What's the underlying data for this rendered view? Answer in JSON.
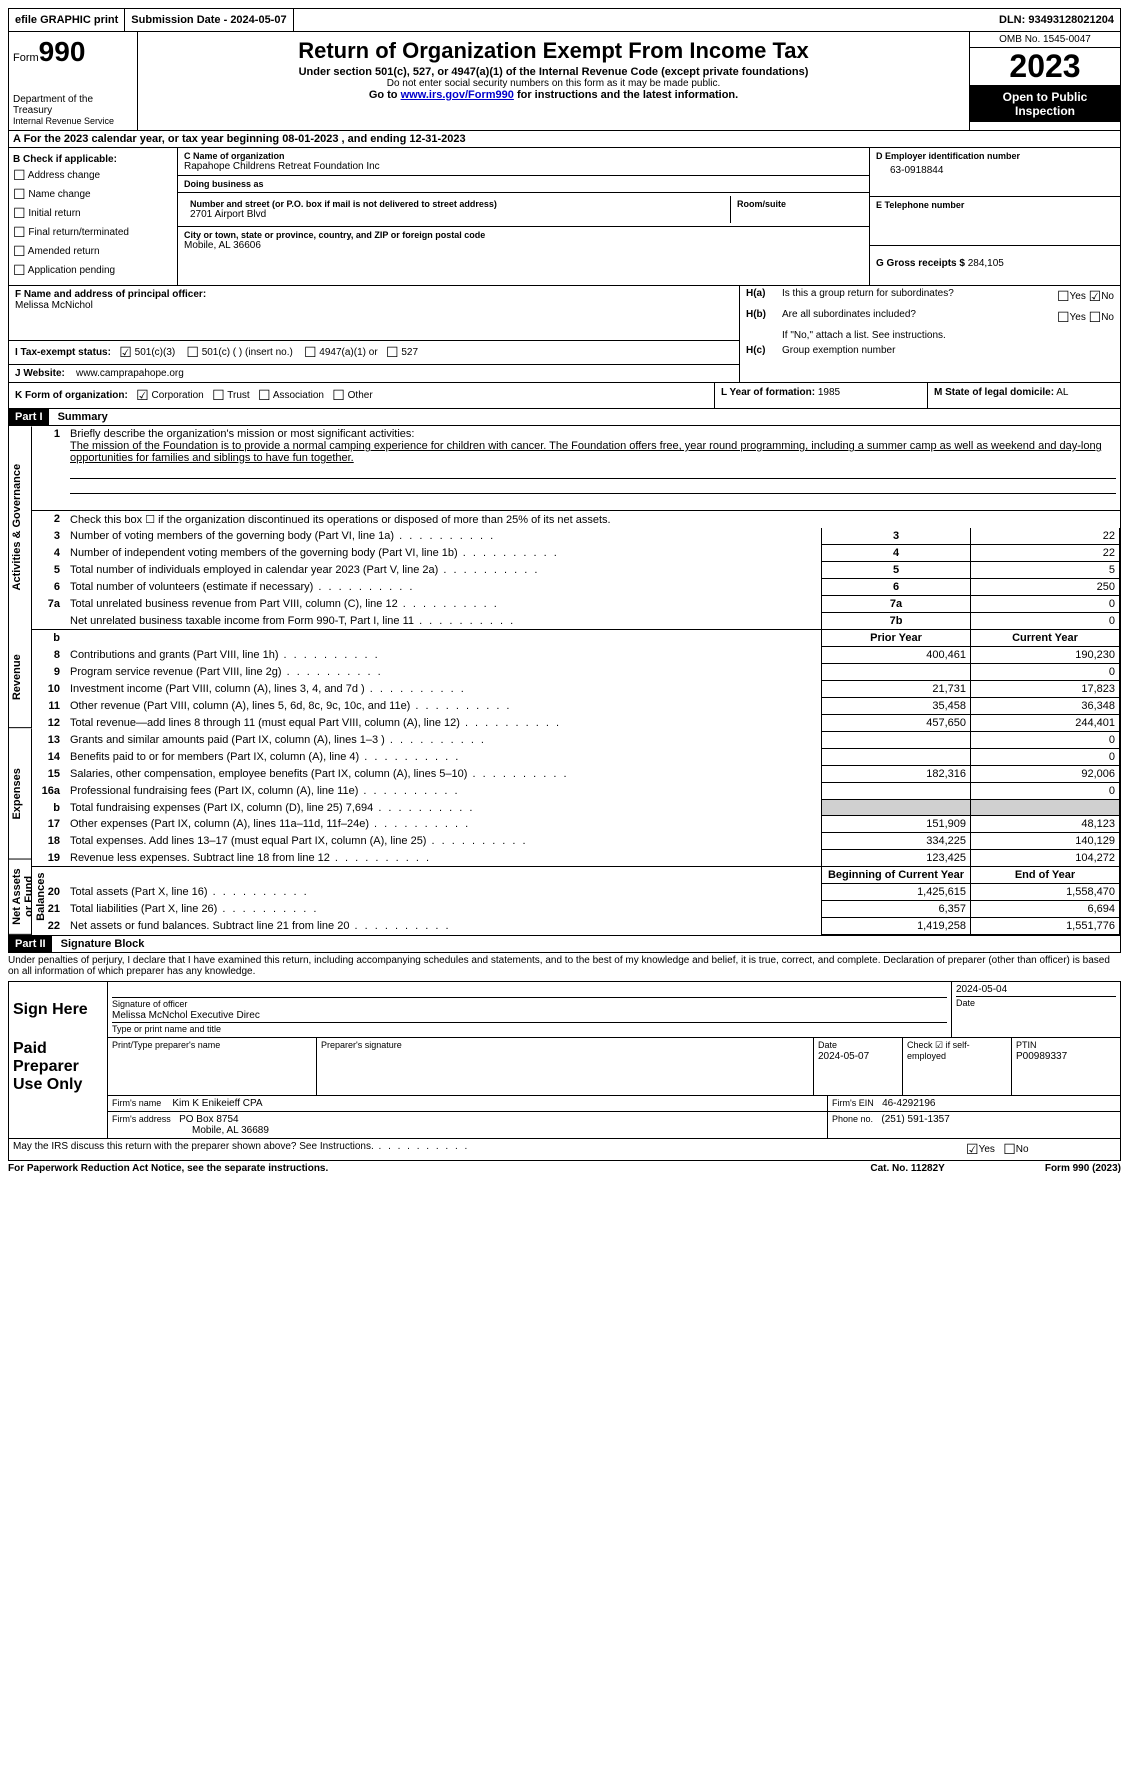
{
  "topbar": {
    "efile": "efile GRAPHIC print",
    "submission": "Submission Date - 2024-05-07",
    "dln": "DLN: 93493128021204"
  },
  "header": {
    "form_label": "Form",
    "form_number": "990",
    "dept": "Department of the Treasury",
    "irs": "Internal Revenue Service",
    "title": "Return of Organization Exempt From Income Tax",
    "subtitle": "Under section 501(c), 527, or 4947(a)(1) of the Internal Revenue Code (except private foundations)",
    "ssn_note": "Do not enter social security numbers on this form as it may be made public.",
    "goto_prefix": "Go to ",
    "goto_link": "www.irs.gov/Form990",
    "goto_suffix": " for instructions and the latest information.",
    "omb": "OMB No. 1545-0047",
    "year": "2023",
    "open": "Open to Public Inspection"
  },
  "row_a": "A For the 2023 calendar year, or tax year beginning 08-01-2023   , and ending 12-31-2023",
  "box_b": {
    "title": "B Check if applicable:",
    "items": [
      "Address change",
      "Name change",
      "Initial return",
      "Final return/terminated",
      "Amended return",
      "Application pending"
    ]
  },
  "box_c": {
    "name_label": "C Name of organization",
    "name": "Rapahope Childrens Retreat Foundation Inc",
    "dba_label": "Doing business as",
    "dba": "",
    "street_label": "Number and street (or P.O. box if mail is not delivered to street address)",
    "room_label": "Room/suite",
    "street": "2701 Airport Blvd",
    "city_label": "City or town, state or province, country, and ZIP or foreign postal code",
    "city": "Mobile, AL  36606"
  },
  "box_d": {
    "label": "D Employer identification number",
    "val": "63-0918844"
  },
  "box_e": {
    "label": "E Telephone number",
    "val": ""
  },
  "box_g": {
    "label": "G Gross receipts $",
    "val": "284,105"
  },
  "box_f": {
    "label": "F  Name and address of principal officer:",
    "name": "Melissa McNichol"
  },
  "box_h": {
    "a_label": "H(a)",
    "a_text": "Is this a group return for subordinates?",
    "b_label": "H(b)",
    "b_text": "Are all subordinates included?",
    "b_note": "If \"No,\" attach a list. See instructions.",
    "c_label": "H(c)",
    "c_text": "Group exemption number",
    "yes": "Yes",
    "no": "No"
  },
  "box_i": {
    "label": "I     Tax-exempt status:",
    "opt1": "501(c)(3)",
    "opt2": "501(c) (  ) (insert no.)",
    "opt3": "4947(a)(1) or",
    "opt4": "527"
  },
  "box_j": {
    "label": "J     Website:",
    "val": "www.camprapahope.org"
  },
  "box_k": {
    "label": "K Form of organization:",
    "opts": [
      "Corporation",
      "Trust",
      "Association",
      "Other"
    ]
  },
  "box_l": {
    "label": "L Year of formation:",
    "val": "1985"
  },
  "box_m": {
    "label": "M State of legal domicile:",
    "val": "AL"
  },
  "part1": {
    "header": "Part I",
    "title": "Summary",
    "tabs": {
      "gov": "Activities & Governance",
      "rev": "Revenue",
      "exp": "Expenses",
      "net": "Net Assets or Fund Balances"
    },
    "line1_label": "Briefly describe the organization's mission or most significant activities:",
    "mission": "The mission of the Foundation is to provide a normal camping experience for children with cancer. The Foundation offers free, year round programming, including a summer camp as well as weekend and day-long opportunities for families and siblings to have fun together.",
    "line2": "Check this box ☐ if the organization discontinued its operations or disposed of more than 25% of its net assets.",
    "lines_gov": [
      {
        "n": "3",
        "text": "Number of voting members of the governing body (Part VI, line 1a)",
        "box": "3",
        "val": "22"
      },
      {
        "n": "4",
        "text": "Number of independent voting members of the governing body (Part VI, line 1b)",
        "box": "4",
        "val": "22"
      },
      {
        "n": "5",
        "text": "Total number of individuals employed in calendar year 2023 (Part V, line 2a)",
        "box": "5",
        "val": "5"
      },
      {
        "n": "6",
        "text": "Total number of volunteers (estimate if necessary)",
        "box": "6",
        "val": "250"
      },
      {
        "n": "7a",
        "text": "Total unrelated business revenue from Part VIII, column (C), line 12",
        "box": "7a",
        "val": "0"
      },
      {
        "n": "",
        "text": "Net unrelated business taxable income from Form 990-T, Part I, line 11",
        "box": "7b",
        "val": "0"
      }
    ],
    "col_headers": {
      "prior": "Prior Year",
      "current": "Current Year",
      "begin": "Beginning of Current Year",
      "end": "End of Year"
    },
    "lines_rev": [
      {
        "n": "8",
        "text": "Contributions and grants (Part VIII, line 1h)",
        "prior": "400,461",
        "curr": "190,230"
      },
      {
        "n": "9",
        "text": "Program service revenue (Part VIII, line 2g)",
        "prior": "",
        "curr": "0"
      },
      {
        "n": "10",
        "text": "Investment income (Part VIII, column (A), lines 3, 4, and 7d )",
        "prior": "21,731",
        "curr": "17,823"
      },
      {
        "n": "11",
        "text": "Other revenue (Part VIII, column (A), lines 5, 6d, 8c, 9c, 10c, and 11e)",
        "prior": "35,458",
        "curr": "36,348"
      },
      {
        "n": "12",
        "text": "Total revenue—add lines 8 through 11 (must equal Part VIII, column (A), line 12)",
        "prior": "457,650",
        "curr": "244,401"
      }
    ],
    "lines_exp": [
      {
        "n": "13",
        "text": "Grants and similar amounts paid (Part IX, column (A), lines 1–3 )",
        "prior": "",
        "curr": "0"
      },
      {
        "n": "14",
        "text": "Benefits paid to or for members (Part IX, column (A), line 4)",
        "prior": "",
        "curr": "0"
      },
      {
        "n": "15",
        "text": "Salaries, other compensation, employee benefits (Part IX, column (A), lines 5–10)",
        "prior": "182,316",
        "curr": "92,006"
      },
      {
        "n": "16a",
        "text": "Professional fundraising fees (Part IX, column (A), line 11e)",
        "prior": "",
        "curr": "0"
      },
      {
        "n": "b",
        "text": "Total fundraising expenses (Part IX, column (D), line 25) 7,694",
        "prior": "gray",
        "curr": "gray"
      },
      {
        "n": "17",
        "text": "Other expenses (Part IX, column (A), lines 11a–11d, 11f–24e)",
        "prior": "151,909",
        "curr": "48,123"
      },
      {
        "n": "18",
        "text": "Total expenses. Add lines 13–17 (must equal Part IX, column (A), line 25)",
        "prior": "334,225",
        "curr": "140,129"
      },
      {
        "n": "19",
        "text": "Revenue less expenses. Subtract line 18 from line 12",
        "prior": "123,425",
        "curr": "104,272"
      }
    ],
    "lines_net": [
      {
        "n": "20",
        "text": "Total assets (Part X, line 16)",
        "prior": "1,425,615",
        "curr": "1,558,470"
      },
      {
        "n": "21",
        "text": "Total liabilities (Part X, line 26)",
        "prior": "6,357",
        "curr": "6,694"
      },
      {
        "n": "22",
        "text": "Net assets or fund balances. Subtract line 21 from line 20",
        "prior": "1,419,258",
        "curr": "1,551,776"
      }
    ]
  },
  "part2": {
    "header": "Part II",
    "title": "Signature Block",
    "perjury": "Under penalties of perjury, I declare that I have examined this return, including accompanying schedules and statements, and to the best of my knowledge and belief, it is true, correct, and complete. Declaration of preparer (other than officer) is based on all information of which preparer has any knowledge.",
    "sign_here": "Sign Here",
    "sig_officer": "Signature of officer",
    "officer_name": "Melissa McNchol Executive Direc",
    "type_name": "Type or print name and title",
    "sig_date": "2024-05-04",
    "date_label": "Date",
    "paid": "Paid Preparer Use Only",
    "prep_name_label": "Print/Type preparer's name",
    "prep_sig_label": "Preparer's signature",
    "prep_date": "2024-05-07",
    "check_self": "Check ☑ if self-employed",
    "ptin_label": "PTIN",
    "ptin": "P00989337",
    "firm_name_label": "Firm's name",
    "firm_name": "Kim K Enikeieff CPA",
    "firm_ein_label": "Firm's EIN",
    "firm_ein": "46-4292196",
    "firm_addr_label": "Firm's address",
    "firm_addr1": "PO Box 8754",
    "firm_addr2": "Mobile, AL  36689",
    "phone_label": "Phone no.",
    "phone": "(251) 591-1357",
    "may_irs": "May the IRS discuss this return with the preparer shown above? See Instructions."
  },
  "footer": {
    "pra": "For Paperwork Reduction Act Notice, see the separate instructions.",
    "cat": "Cat. No. 11282Y",
    "form": "Form 990 (2023)"
  }
}
